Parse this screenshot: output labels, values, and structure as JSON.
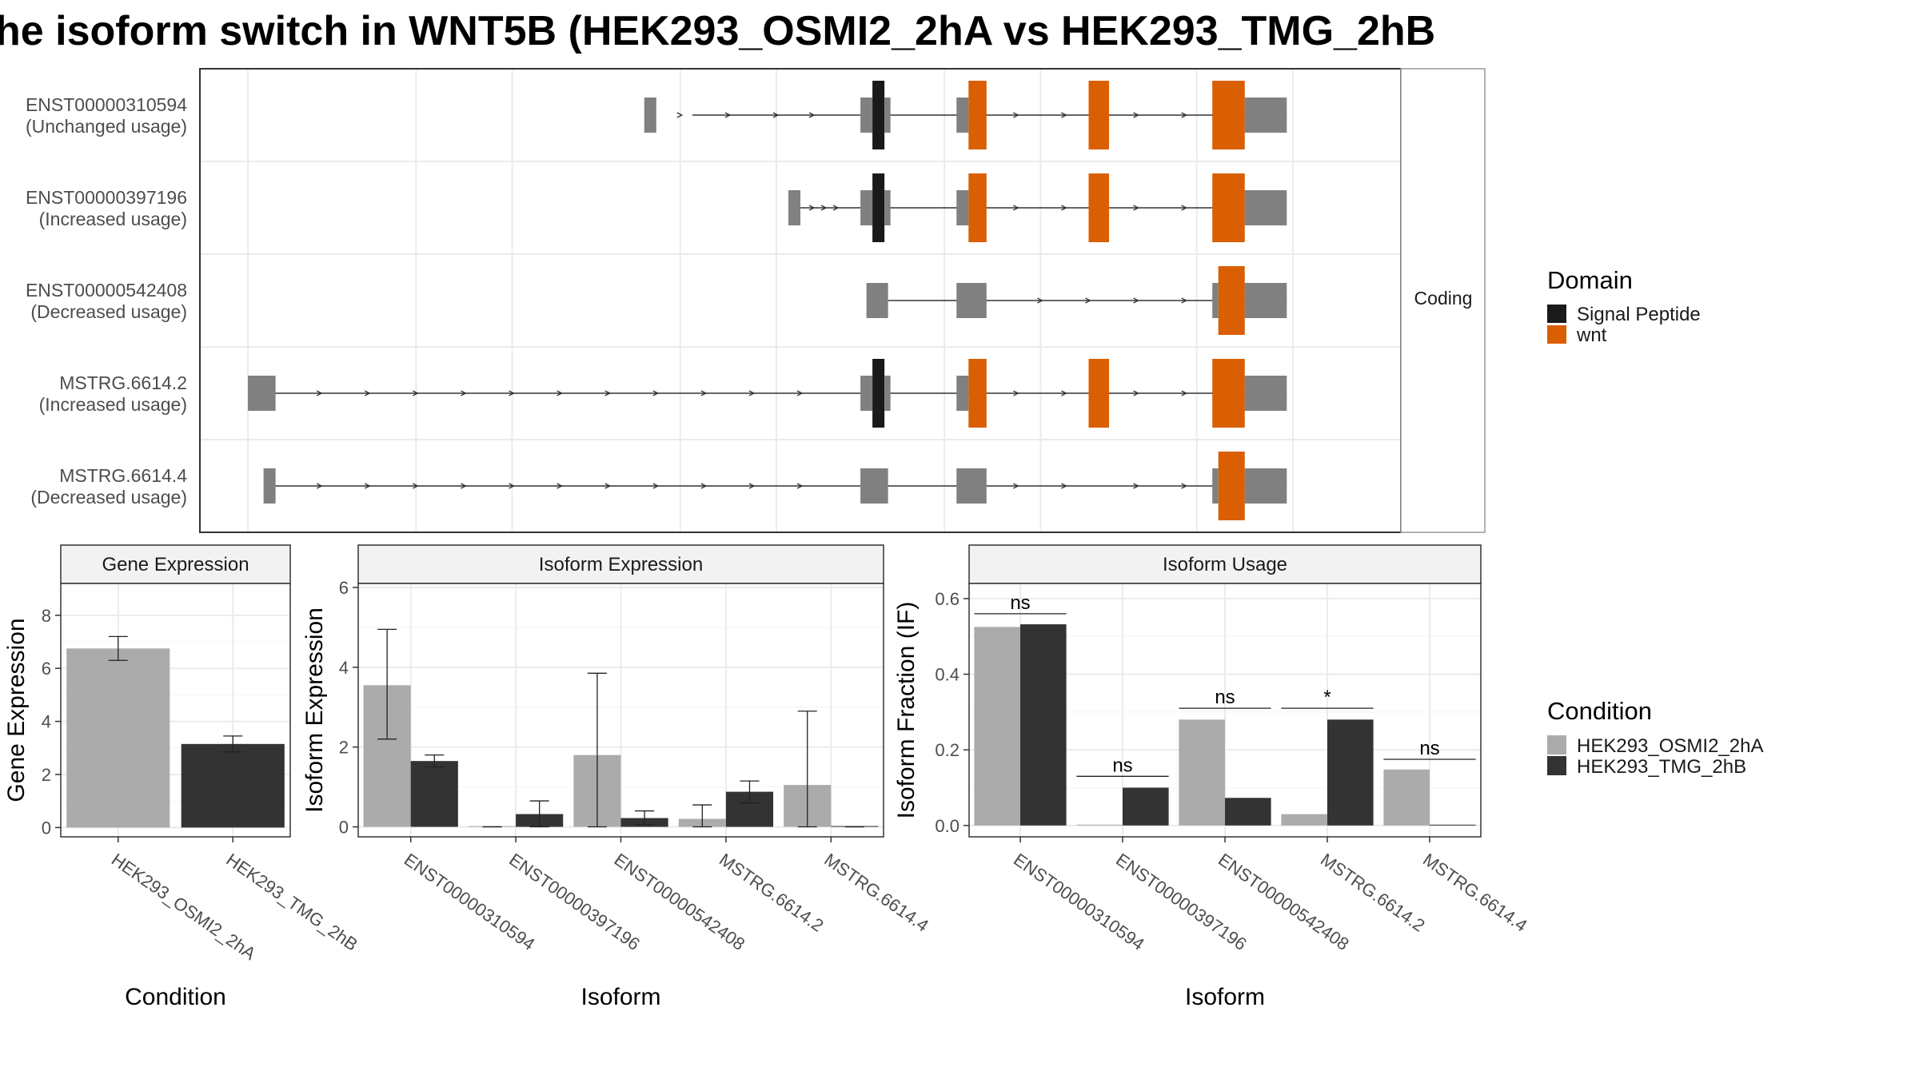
{
  "title": "he isoform switch in WNT5B (HEK293_OSMI2_2hA vs HEK293_TMG_2hB",
  "colors": {
    "cond_a": "#ababab",
    "cond_b": "#333333",
    "exon": "#808080",
    "signal_peptide": "#1a1a1a",
    "wnt": "#d95f02",
    "strip": "#f2f2f2",
    "grid": "#ebebeb",
    "border": "#333333"
  },
  "structure": {
    "side_label": "Coding",
    "legend_title": "Domain",
    "legend_items": [
      {
        "label": "Signal Peptide",
        "color": "#1a1a1a"
      },
      {
        "label": "wnt",
        "color": "#d95f02"
      }
    ],
    "isoforms": [
      {
        "id": "ENST00000310594",
        "usage": "(Unchanged usage)",
        "start": 0.42,
        "intron_start": 0.41,
        "exons": [
          [
            0.37,
            0.38,
            "n"
          ],
          [
            0.55,
            0.56,
            "n"
          ],
          [
            0.56,
            0.57,
            "s"
          ],
          [
            0.57,
            0.575,
            "n"
          ],
          [
            0.63,
            0.64,
            "n"
          ],
          [
            0.64,
            0.655,
            "w"
          ],
          [
            0.74,
            0.757,
            "w"
          ],
          [
            0.843,
            0.87,
            "w"
          ],
          [
            0.87,
            0.905,
            "n"
          ]
        ],
        "arrows": [
          0.4,
          0.44,
          0.48,
          0.51,
          0.68,
          0.72,
          0.78,
          0.82
        ]
      },
      {
        "id": "ENST00000397196",
        "usage": "(Increased usage)",
        "start": 0.49,
        "intron_start": 0.49,
        "exons": [
          [
            0.49,
            0.5,
            "n"
          ],
          [
            0.55,
            0.56,
            "n"
          ],
          [
            0.56,
            0.57,
            "s"
          ],
          [
            0.57,
            0.575,
            "n"
          ],
          [
            0.63,
            0.64,
            "n"
          ],
          [
            0.64,
            0.655,
            "w"
          ],
          [
            0.74,
            0.757,
            "w"
          ],
          [
            0.843,
            0.87,
            "w"
          ],
          [
            0.87,
            0.905,
            "n"
          ]
        ],
        "arrows": [
          0.51,
          0.52,
          0.53,
          0.68,
          0.72,
          0.78,
          0.82
        ]
      },
      {
        "id": "ENST00000542408",
        "usage": "(Decreased usage)",
        "start": 0.55,
        "intron_start": 0.57,
        "exons": [
          [
            0.555,
            0.573,
            "n"
          ],
          [
            0.63,
            0.655,
            "n"
          ],
          [
            0.843,
            0.848,
            "n"
          ],
          [
            0.848,
            0.87,
            "w"
          ],
          [
            0.87,
            0.905,
            "n"
          ]
        ],
        "arrows": [
          0.7,
          0.74,
          0.78,
          0.82
        ]
      },
      {
        "id": "MSTRG.6614.2",
        "usage": "(Increased usage)",
        "start": 0.04,
        "intron_start": 0.06,
        "exons": [
          [
            0.04,
            0.063,
            "n"
          ],
          [
            0.55,
            0.56,
            "n"
          ],
          [
            0.56,
            0.57,
            "s"
          ],
          [
            0.57,
            0.575,
            "n"
          ],
          [
            0.63,
            0.64,
            "n"
          ],
          [
            0.64,
            0.655,
            "w"
          ],
          [
            0.74,
            0.757,
            "w"
          ],
          [
            0.843,
            0.87,
            "w"
          ],
          [
            0.87,
            0.905,
            "n"
          ]
        ],
        "arrows": [
          0.1,
          0.14,
          0.18,
          0.22,
          0.26,
          0.3,
          0.34,
          0.38,
          0.42,
          0.46,
          0.5,
          0.68,
          0.72,
          0.78,
          0.82
        ]
      },
      {
        "id": "MSTRG.6614.4",
        "usage": "(Decreased usage)",
        "start": 0.05,
        "intron_start": 0.06,
        "exons": [
          [
            0.053,
            0.063,
            "n"
          ],
          [
            0.55,
            0.573,
            "n"
          ],
          [
            0.63,
            0.655,
            "n"
          ],
          [
            0.843,
            0.848,
            "n"
          ],
          [
            0.848,
            0.87,
            "w"
          ],
          [
            0.87,
            0.905,
            "n"
          ]
        ],
        "arrows": [
          0.1,
          0.14,
          0.18,
          0.22,
          0.26,
          0.3,
          0.34,
          0.38,
          0.42,
          0.46,
          0.5,
          0.68,
          0.72,
          0.78,
          0.82
        ]
      }
    ]
  },
  "chart_data": [
    {
      "type": "bar",
      "title": "Gene Expression",
      "xlabel": "Condition",
      "ylabel": "Gene Expression",
      "categories": [
        "HEK293_OSMI2_2hA",
        "HEK293_TMG_2hB"
      ],
      "values": [
        6.75,
        3.15
      ],
      "errors": [
        [
          6.3,
          7.2
        ],
        [
          2.85,
          3.45
        ]
      ],
      "ylim": [
        -0.35,
        9.2
      ],
      "yticks": [
        "0",
        "2",
        "4",
        "6",
        "8"
      ],
      "grid": true
    },
    {
      "type": "bar",
      "title": "Isoform Expression",
      "xlabel": "Isoform",
      "ylabel": "Isoform Expression",
      "categories": [
        "ENST00000310594",
        "ENST00000397196",
        "ENST00000542408",
        "MSTRG.6614.2",
        "MSTRG.6614.4"
      ],
      "series": [
        {
          "name": "HEK293_OSMI2_2hA",
          "values": [
            3.55,
            0,
            1.8,
            0.2,
            1.05
          ],
          "errors": [
            [
              2.2,
              4.95
            ],
            [
              0,
              0
            ],
            [
              0,
              3.85
            ],
            [
              0,
              0.55
            ],
            [
              0,
              2.9
            ]
          ]
        },
        {
          "name": "HEK293_TMG_2hB",
          "values": [
            1.65,
            0.32,
            0.22,
            0.88,
            0
          ],
          "errors": [
            [
              1.5,
              1.8
            ],
            [
              0,
              0.65
            ],
            [
              0.05,
              0.4
            ],
            [
              0.6,
              1.15
            ],
            [
              0,
              0
            ]
          ]
        }
      ],
      "ylim": [
        -0.25,
        6.1
      ],
      "yticks": [
        "0",
        "2",
        "4",
        "6"
      ],
      "grid": true
    },
    {
      "type": "bar",
      "title": "Isoform Usage",
      "xlabel": "Isoform",
      "ylabel": "Isoform Fraction (IF)",
      "categories": [
        "ENST00000310594",
        "ENST00000397196",
        "ENST00000542408",
        "MSTRG.6614.2",
        "MSTRG.6614.4"
      ],
      "series": [
        {
          "name": "HEK293_OSMI2_2hA",
          "values": [
            0.525,
            0,
            0.28,
            0.03,
            0.148
          ]
        },
        {
          "name": "HEK293_TMG_2hB",
          "values": [
            0.532,
            0.1,
            0.073,
            0.28,
            0
          ]
        }
      ],
      "significance": [
        "ns",
        "ns",
        "ns",
        "*",
        "ns"
      ],
      "sig_levels": [
        0.56,
        0.13,
        0.31,
        0.31,
        0.175
      ],
      "ylim": [
        -0.03,
        0.64
      ],
      "yticks": [
        "0.0",
        "0.2",
        "0.4",
        "0.6"
      ],
      "grid": true,
      "legend": {
        "title": "Condition",
        "position": "right"
      }
    }
  ]
}
